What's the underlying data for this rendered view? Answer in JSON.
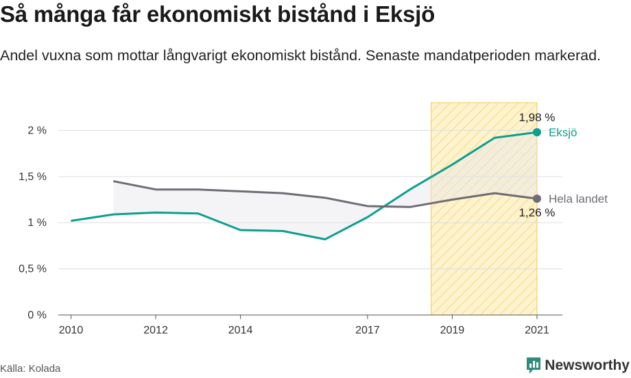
{
  "title": "Så många får ekonomiskt bistånd i Eksjö",
  "subtitle": "Andel vuxna som mottar långvarigt ekonomiskt bistånd. Senaste mandatperioden markerad.",
  "source": "Källa: Kolada",
  "brand": "Newsworthy",
  "colors": {
    "eksjo": "#0d9e8f",
    "hela_landet": "#6e6c74",
    "highlight_fill": "#fdf0c2",
    "highlight_stroke": "#f5c94a",
    "area_fill": "#e6e6ea",
    "grid": "#dddddd"
  },
  "chart_data": {
    "type": "line",
    "x": [
      2010,
      2011,
      2012,
      2013,
      2014,
      2015,
      2016,
      2017,
      2018,
      2019,
      2020,
      2021
    ],
    "x_ticks": [
      "2010",
      "2012",
      "2014",
      "2017",
      "2019",
      "2021"
    ],
    "x_tick_values": [
      2010,
      2012,
      2014,
      2017,
      2019,
      2021
    ],
    "y_ticks": [
      "0 %",
      "0,5 %",
      "1 %",
      "1,5 %",
      "2 %"
    ],
    "y_tick_values": [
      0,
      0.5,
      1,
      1.5,
      2
    ],
    "ylim": [
      0,
      2.3
    ],
    "xlim": [
      2009.7,
      2021.6
    ],
    "highlight_range": [
      2018.5,
      2021
    ],
    "grid": true,
    "series": [
      {
        "name": "Eksjö",
        "key": "eksjo",
        "values": [
          1.02,
          1.09,
          1.11,
          1.1,
          0.92,
          0.91,
          0.82,
          1.06,
          1.36,
          1.63,
          1.92,
          1.98
        ],
        "end_value_label": "1,98 %"
      },
      {
        "name": "Hela landet",
        "key": "hela_landet",
        "values": [
          null,
          1.45,
          1.36,
          1.36,
          1.34,
          1.32,
          1.27,
          1.18,
          1.17,
          1.25,
          1.32,
          1.26
        ],
        "end_value_label": "1,26 %"
      }
    ]
  }
}
